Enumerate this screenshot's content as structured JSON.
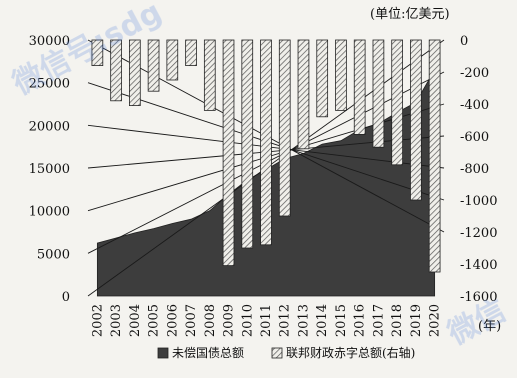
{
  "chart_data": {
    "type": "area",
    "unit_label": "(单位:亿美元)",
    "x_axis_unit": "(年)",
    "categories": [
      "2002",
      "2003",
      "2004",
      "2005",
      "2006",
      "2007",
      "2008",
      "2009",
      "2010",
      "2011",
      "2012",
      "2013",
      "2014",
      "2015",
      "2016",
      "2017",
      "2018",
      "2019",
      "2020"
    ],
    "left_axis": {
      "min": 0,
      "max": 30000,
      "ticks": [
        0,
        5000,
        10000,
        15000,
        20000,
        25000,
        30000
      ]
    },
    "right_axis": {
      "min": -1600,
      "max": 0,
      "ticks": [
        0,
        -200,
        -400,
        -600,
        -800,
        -1000,
        -1200,
        -1400,
        -1600
      ]
    },
    "series": [
      {
        "name": "未偿国债总额",
        "axis": "left",
        "mark": "area",
        "values": [
          6200,
          6800,
          7400,
          7900,
          8500,
          9000,
          10000,
          11900,
          13600,
          14800,
          16100,
          16700,
          17800,
          18200,
          19500,
          20200,
          21500,
          22700,
          26500
        ]
      },
      {
        "name": "联邦财政赤字总额(右轴)",
        "axis": "right",
        "mark": "bar",
        "values": [
          -160,
          -380,
          -410,
          -320,
          -250,
          -160,
          -440,
          -1410,
          -1300,
          -1280,
          -1100,
          -680,
          -480,
          -440,
          -590,
          -670,
          -780,
          -1000,
          -1450
        ]
      }
    ],
    "legend": {
      "area_label": "未偿国债总额",
      "bar_label": "联邦财政赤字总额(右轴)"
    },
    "colors": {
      "area": "#3d3d3d",
      "bar_fill": "#f0efea",
      "bar_hatch": "#555555",
      "background": "#f4f3ef"
    },
    "grid": false,
    "legend_position": "bottom"
  },
  "watermark": {
    "top_left": "微信号:sdg",
    "bottom_right": "微信"
  }
}
